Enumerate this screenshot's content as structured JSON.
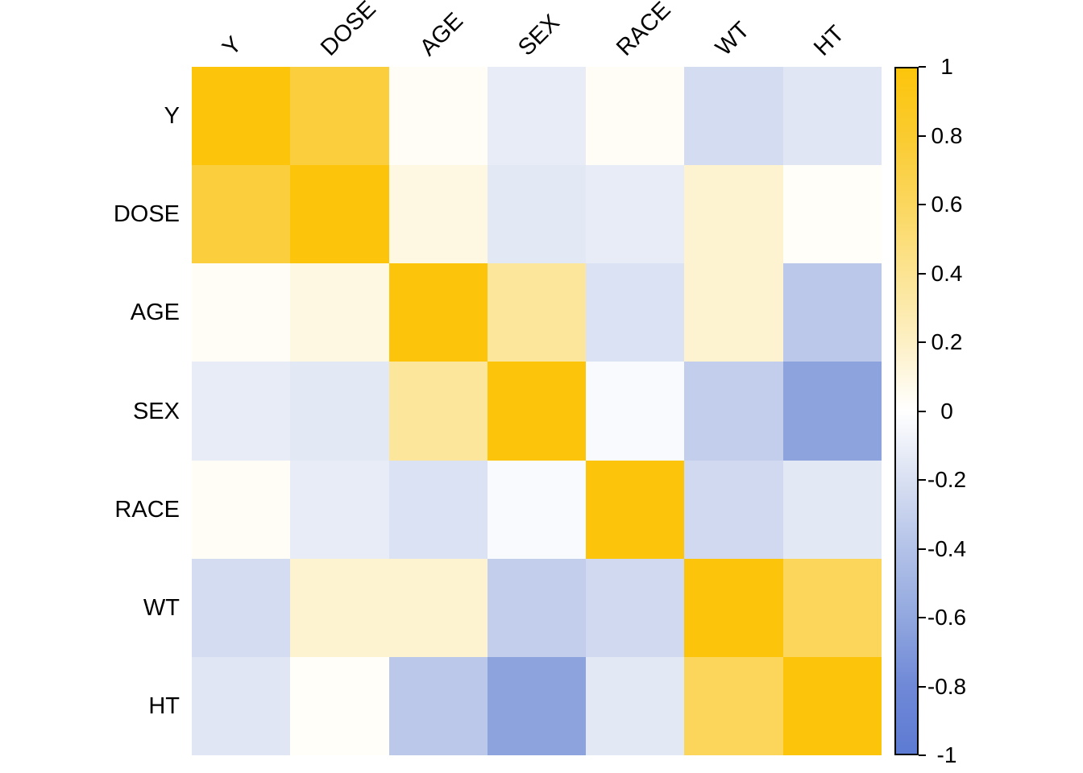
{
  "chart_data": {
    "type": "heatmap",
    "title": "",
    "subtitle": "",
    "variables": [
      "Y",
      "DOSE",
      "AGE",
      "SEX",
      "RACE",
      "WT",
      "HT"
    ],
    "matrix": [
      [
        1.0,
        0.75,
        0.03,
        -0.12,
        0.03,
        -0.23,
        -0.16
      ],
      [
        0.75,
        1.0,
        0.1,
        -0.15,
        -0.12,
        0.16,
        0.02
      ],
      [
        0.03,
        0.1,
        1.0,
        0.37,
        -0.19,
        0.16,
        -0.36
      ],
      [
        -0.12,
        -0.15,
        0.37,
        1.0,
        -0.03,
        -0.32,
        -0.63
      ],
      [
        0.03,
        -0.12,
        -0.19,
        -0.03,
        1.0,
        -0.25,
        -0.15
      ],
      [
        -0.23,
        0.16,
        0.16,
        -0.32,
        -0.25,
        1.0,
        0.62
      ],
      [
        -0.16,
        0.02,
        -0.36,
        -0.63,
        -0.15,
        0.62,
        1.0
      ]
    ],
    "value_range": [
      -1,
      1
    ],
    "grid": false,
    "colorbar": {
      "position": "right",
      "ticks": [
        {
          "value": 1.0,
          "label": "1"
        },
        {
          "value": 0.8,
          "label": "0.8"
        },
        {
          "value": 0.6,
          "label": "0.6"
        },
        {
          "value": 0.4,
          "label": "0.4"
        },
        {
          "value": 0.2,
          "label": "0.2"
        },
        {
          "value": 0.0,
          "label": "0"
        },
        {
          "value": -0.2,
          "label": "-0.2"
        },
        {
          "value": -0.4,
          "label": "-0.4"
        },
        {
          "value": -0.6,
          "label": "-0.6"
        },
        {
          "value": -0.8,
          "label": "-0.8"
        },
        {
          "value": -1.0,
          "label": "-1"
        }
      ],
      "gradient_stops": [
        {
          "value": 1.0,
          "color": "#FCC50B"
        },
        {
          "value": 0.8,
          "color": "#FACB30"
        },
        {
          "value": 0.6,
          "color": "#FBD75F"
        },
        {
          "value": 0.4,
          "color": "#FCE493"
        },
        {
          "value": 0.2,
          "color": "#FDF0C5"
        },
        {
          "value": 0.0,
          "color": "#FFFFFF"
        },
        {
          "value": -0.2,
          "color": "#D9E0F2"
        },
        {
          "value": -0.4,
          "color": "#B3C2E8"
        },
        {
          "value": -0.6,
          "color": "#92A8DF"
        },
        {
          "value": -0.8,
          "color": "#7089D7"
        },
        {
          "value": -1.0,
          "color": "#5D7BD3"
        }
      ]
    },
    "colors": {
      "positive_max": "#FCC50B",
      "zero": "#FFFFFF",
      "negative_min": "#5D7BD3",
      "background": "#FFFFFF",
      "label_text": "#000000",
      "colorbar_border": "#000000"
    }
  }
}
